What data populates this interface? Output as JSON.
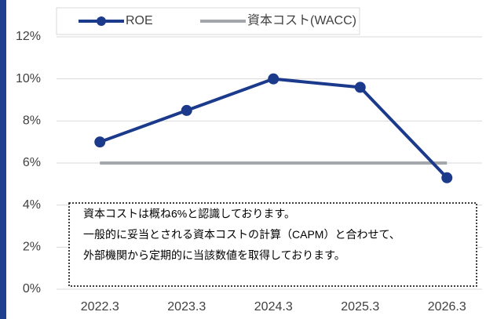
{
  "chart_data": {
    "type": "line",
    "categories": [
      "2022.3",
      "2023.3",
      "2024.3",
      "2025.3",
      "2026.3"
    ],
    "series": [
      {
        "name": "ROE",
        "color": "#1b3a8c",
        "values": [
          7,
          8.5,
          10,
          9.6,
          5.3
        ],
        "markers": true
      },
      {
        "name": "資本コスト(WACC)",
        "color": "#a3a6ab",
        "values": [
          6,
          6,
          6,
          6,
          6
        ],
        "markers": false
      }
    ],
    "ylim": [
      0,
      12
    ],
    "yticks": [
      {
        "value": 0,
        "label": "0%"
      },
      {
        "value": 2,
        "label": "2%"
      },
      {
        "value": 4,
        "label": "4%"
      },
      {
        "value": 6,
        "label": "6%"
      },
      {
        "value": 8,
        "label": "8%"
      },
      {
        "value": 10,
        "label": "10%"
      },
      {
        "value": 12,
        "label": "12%"
      }
    ],
    "grid": true,
    "legend": "top",
    "annotation": [
      "資本コストは概ね6%と認識しております。",
      "一般的に妥当とされる資本コストの計算（CAPM）と合わせて、",
      "外部機関から定期的に当該数値を取得しております。"
    ]
  }
}
